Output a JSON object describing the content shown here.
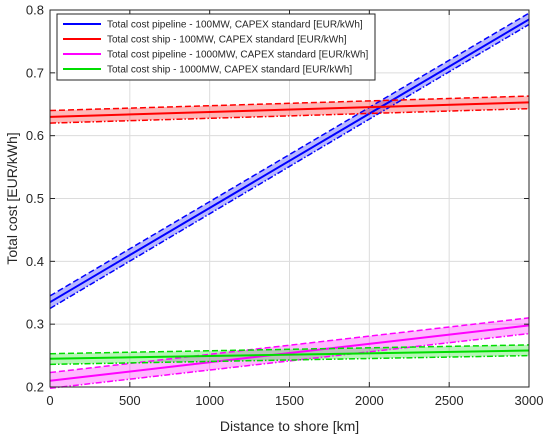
{
  "chart_data": {
    "type": "line",
    "xlabel": "Distance to shore [km]",
    "ylabel": "Total cost [EUR/kWh]",
    "xlim": [
      0,
      3000
    ],
    "ylim": [
      0.2,
      0.8
    ],
    "xticks": [
      0,
      500,
      1000,
      1500,
      2000,
      2500,
      3000
    ],
    "yticks": [
      0.2,
      0.3,
      0.4,
      0.5,
      0.6,
      0.7,
      0.8
    ],
    "xtick_labels": [
      "0",
      "500",
      "1000",
      "1500",
      "2000",
      "2500",
      "3000"
    ],
    "ytick_labels": [
      "0.2",
      "0.3",
      "0.4",
      "0.5",
      "0.6",
      "0.7",
      "0.8"
    ],
    "grid": true,
    "legend_position": "top-left",
    "series": [
      {
        "name": "Total cost pipeline - 100MW, CAPEX standard [EUR/kWh]",
        "color": "#0000ff",
        "x": [
          0,
          3000
        ],
        "y": [
          0.335,
          0.785
        ],
        "upper": [
          0.345,
          0.795
        ],
        "lower": [
          0.325,
          0.777
        ]
      },
      {
        "name": "Total cost ship - 100MW, CAPEX standard [EUR/kWh]",
        "color": "#ff0000",
        "x": [
          0,
          3000
        ],
        "y": [
          0.63,
          0.653
        ],
        "upper": [
          0.64,
          0.663
        ],
        "lower": [
          0.62,
          0.643
        ]
      },
      {
        "name": "Total cost pipeline - 1000MW, CAPEX standard [EUR/kWh]",
        "color": "#ff00ff",
        "x": [
          0,
          3000
        ],
        "y": [
          0.21,
          0.298
        ],
        "upper": [
          0.223,
          0.31
        ],
        "lower": [
          0.198,
          0.285
        ]
      },
      {
        "name": "Total cost ship - 1000MW, CAPEX standard [EUR/kWh]",
        "color": "#00dd00",
        "x": [
          0,
          3000
        ],
        "y": [
          0.245,
          0.258
        ],
        "upper": [
          0.253,
          0.267
        ],
        "lower": [
          0.236,
          0.25
        ]
      }
    ]
  }
}
